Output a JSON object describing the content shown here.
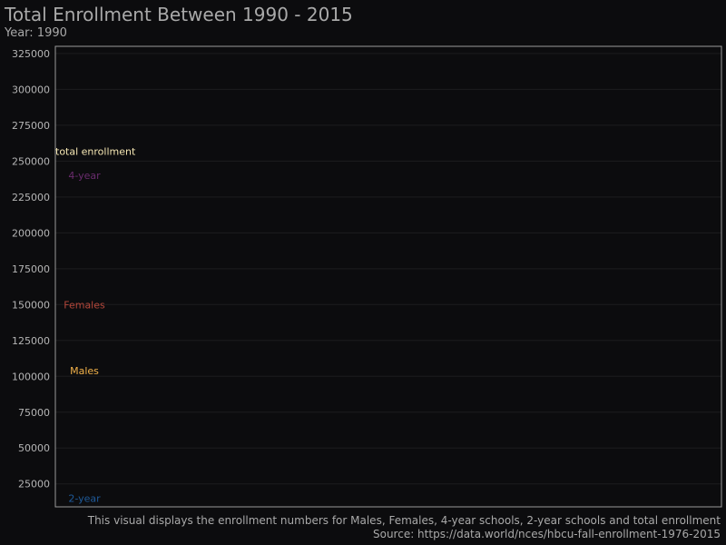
{
  "chart_data": {
    "type": "line",
    "title": "Total Enrollment Between 1990 - 2015",
    "subtitle": "Year: 1990",
    "caption": "This visual displays the enrollment numbers for Males, Females, 4-year schools, 2-year schools and total enrollment",
    "source": "Source: https://data.world/nces/hbcu-fall-enrollment-1976-2015",
    "xlabel": "",
    "ylabel": "",
    "ylim": [
      9000,
      330000
    ],
    "yticks": [
      25000,
      50000,
      75000,
      100000,
      125000,
      150000,
      175000,
      200000,
      225000,
      250000,
      275000,
      300000,
      325000
    ],
    "grid": true,
    "x": [
      1990
    ],
    "series": [
      {
        "name": "total enrollment",
        "values": [
          257000
        ],
        "color": "#f5e6b3"
      },
      {
        "name": "4-year",
        "values": [
          240000
        ],
        "color": "#6a2c6e"
      },
      {
        "name": "Females",
        "values": [
          150000
        ],
        "color": "#b5473a"
      },
      {
        "name": "Males",
        "values": [
          104000
        ],
        "color": "#f2b24a"
      },
      {
        "name": "2-year",
        "values": [
          15000
        ],
        "color": "#1f5a99"
      }
    ]
  }
}
